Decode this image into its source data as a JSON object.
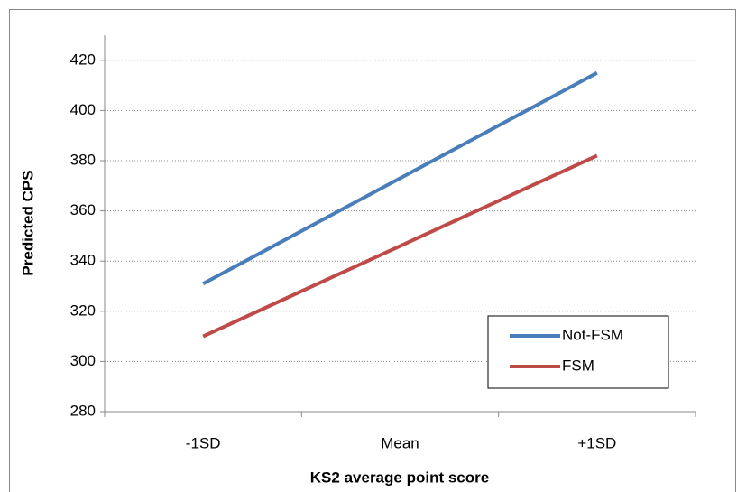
{
  "chart_data": {
    "type": "line",
    "x_label": "KS2 average point score",
    "y_label": "Predicted CPS",
    "categories": [
      "-1SD",
      "Mean",
      "+1SD"
    ],
    "series": [
      {
        "name": "Not-FSM",
        "color": "#4a7ebb",
        "values": [
          331,
          373,
          415
        ]
      },
      {
        "name": "FSM",
        "color": "#be4b48",
        "values": [
          310,
          346,
          382
        ]
      }
    ],
    "ylim": [
      280,
      430
    ],
    "yticks": [
      280,
      300,
      320,
      340,
      360,
      380,
      400,
      420
    ],
    "grid": true,
    "legend": "lower right"
  }
}
